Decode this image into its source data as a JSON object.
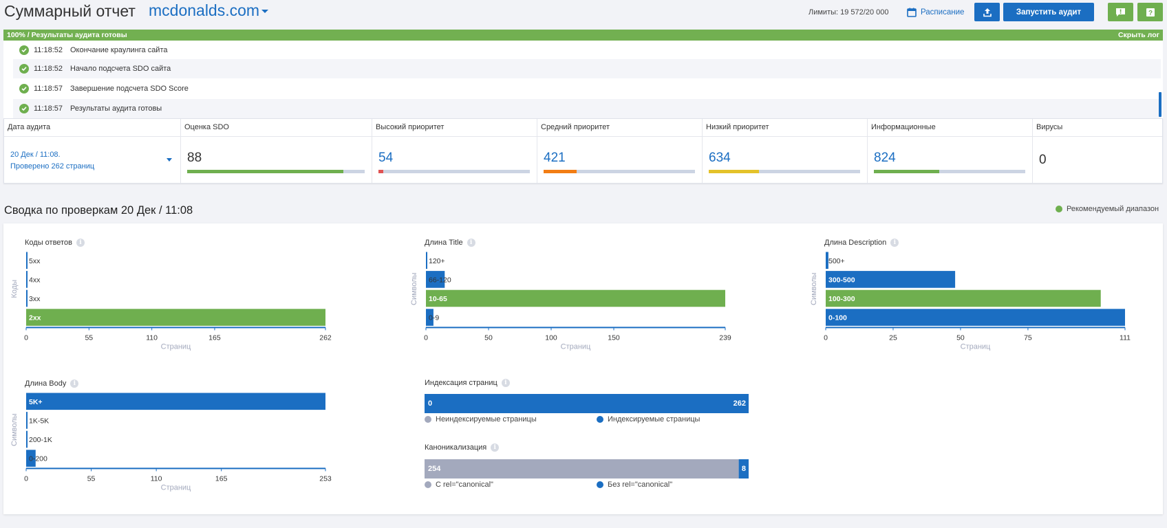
{
  "header": {
    "title": "Суммарный отчет",
    "domain": "mcdonalds.com",
    "limits": "Лимиты: 19 572/20 000",
    "schedule_label": "Расписание",
    "run_audit_label": "Запустить аудит",
    "icons": [
      "calendar-icon",
      "upload-icon",
      "feedback-icon",
      "help-icon"
    ]
  },
  "progress": {
    "value": 100,
    "text": "100% / Результаты аудита готовы",
    "hide_log": "Скрыть лог"
  },
  "log": [
    {
      "time": "11:18:52",
      "text": "Окончание краулинга сайта"
    },
    {
      "time": "11:18:52",
      "text": "Начало подсчета SDO сайта"
    },
    {
      "time": "11:18:57",
      "text": "Завершение подсчета SDO Score"
    },
    {
      "time": "11:18:57",
      "text": "Результаты аудита готовы"
    }
  ],
  "stats": {
    "audit_date_label": "Дата аудита",
    "audit_date_line1": "20 Дек / 11:08.",
    "audit_date_line2": "Проверено 262 страниц",
    "columns": [
      {
        "label": "Оценка SDO",
        "value": "88",
        "fill": 0.88,
        "color": "#6faf4f",
        "blue": false
      },
      {
        "label": "Высокий приоритет",
        "value": "54",
        "fill": 0.03,
        "color": "#e05353",
        "blue": true
      },
      {
        "label": "Средний приоритет",
        "value": "421",
        "fill": 0.22,
        "color": "#f27d14",
        "blue": true
      },
      {
        "label": "Низкий приоритет",
        "value": "634",
        "fill": 0.33,
        "color": "#e4c22a",
        "blue": true
      },
      {
        "label": "Информационные",
        "value": "824",
        "fill": 0.43,
        "color": "#6faf4f",
        "blue": true
      },
      {
        "label": "Вирусы",
        "value": "0"
      }
    ]
  },
  "summary": {
    "title": "Сводка по проверкам 20 Дек / 11:08",
    "recommended_label": "Рекомендуемый диапазон"
  },
  "colors": {
    "blue": "#1b6ec2",
    "green": "#6faf4f",
    "grey": "#a3a9bd"
  },
  "chart_data": [
    {
      "type": "bar",
      "orientation": "horizontal",
      "title": "Коды ответов",
      "ylabel": "Коды",
      "xlabel": "Страниц",
      "categories": [
        "5xx",
        "4xx",
        "3xx",
        "2xx"
      ],
      "values": [
        0,
        0,
        0,
        262
      ],
      "recommended": [
        false,
        false,
        false,
        true
      ],
      "xlim": [
        0,
        262
      ],
      "xticks": [
        0,
        55,
        110,
        165,
        262
      ]
    },
    {
      "type": "bar",
      "orientation": "horizontal",
      "title": "Длина Title",
      "ylabel": "Символы",
      "xlabel": "Страниц",
      "categories": [
        "120+",
        "66-120",
        "10-65",
        "0-9"
      ],
      "values": [
        1,
        15,
        239,
        6
      ],
      "recommended": [
        false,
        false,
        true,
        false
      ],
      "xlim": [
        0,
        239
      ],
      "xticks": [
        0,
        50,
        100,
        150,
        239
      ]
    },
    {
      "type": "bar",
      "orientation": "horizontal",
      "title": "Длина Description",
      "ylabel": "Символы",
      "xlabel": "Страниц",
      "categories": [
        "500+",
        "300-500",
        "100-300",
        "0-100"
      ],
      "values": [
        1,
        48,
        102,
        111
      ],
      "recommended": [
        false,
        false,
        true,
        false
      ],
      "xlim": [
        0,
        111
      ],
      "xticks": [
        0,
        25,
        50,
        75,
        111
      ]
    },
    {
      "type": "bar",
      "orientation": "horizontal",
      "title": "Длина Body",
      "ylabel": "Символы",
      "xlabel": "Страниц",
      "categories": [
        "5K+",
        "1K-5K",
        "200-1K",
        "0-200"
      ],
      "values": [
        253,
        0,
        0,
        8
      ],
      "recommended": [
        false,
        false,
        false,
        false
      ],
      "xlim": [
        0,
        253
      ],
      "xticks": [
        0,
        55,
        110,
        165,
        253
      ]
    },
    {
      "type": "bar",
      "orientation": "stacked",
      "title": "Индексация страниц",
      "series": [
        {
          "name": "Неиндексируемые страницы",
          "value": 0,
          "color": "#a3a9bd"
        },
        {
          "name": "Индексируемые страницы",
          "value": 262,
          "color": "#1b6ec2"
        }
      ]
    },
    {
      "type": "bar",
      "orientation": "stacked",
      "title": "Каноникализация",
      "series": [
        {
          "name": "С rel=\"canonical\"",
          "value": 254,
          "color": "#a3a9bd"
        },
        {
          "name": "Без rel=\"canonical\"",
          "value": 8,
          "color": "#1b6ec2"
        }
      ]
    }
  ]
}
